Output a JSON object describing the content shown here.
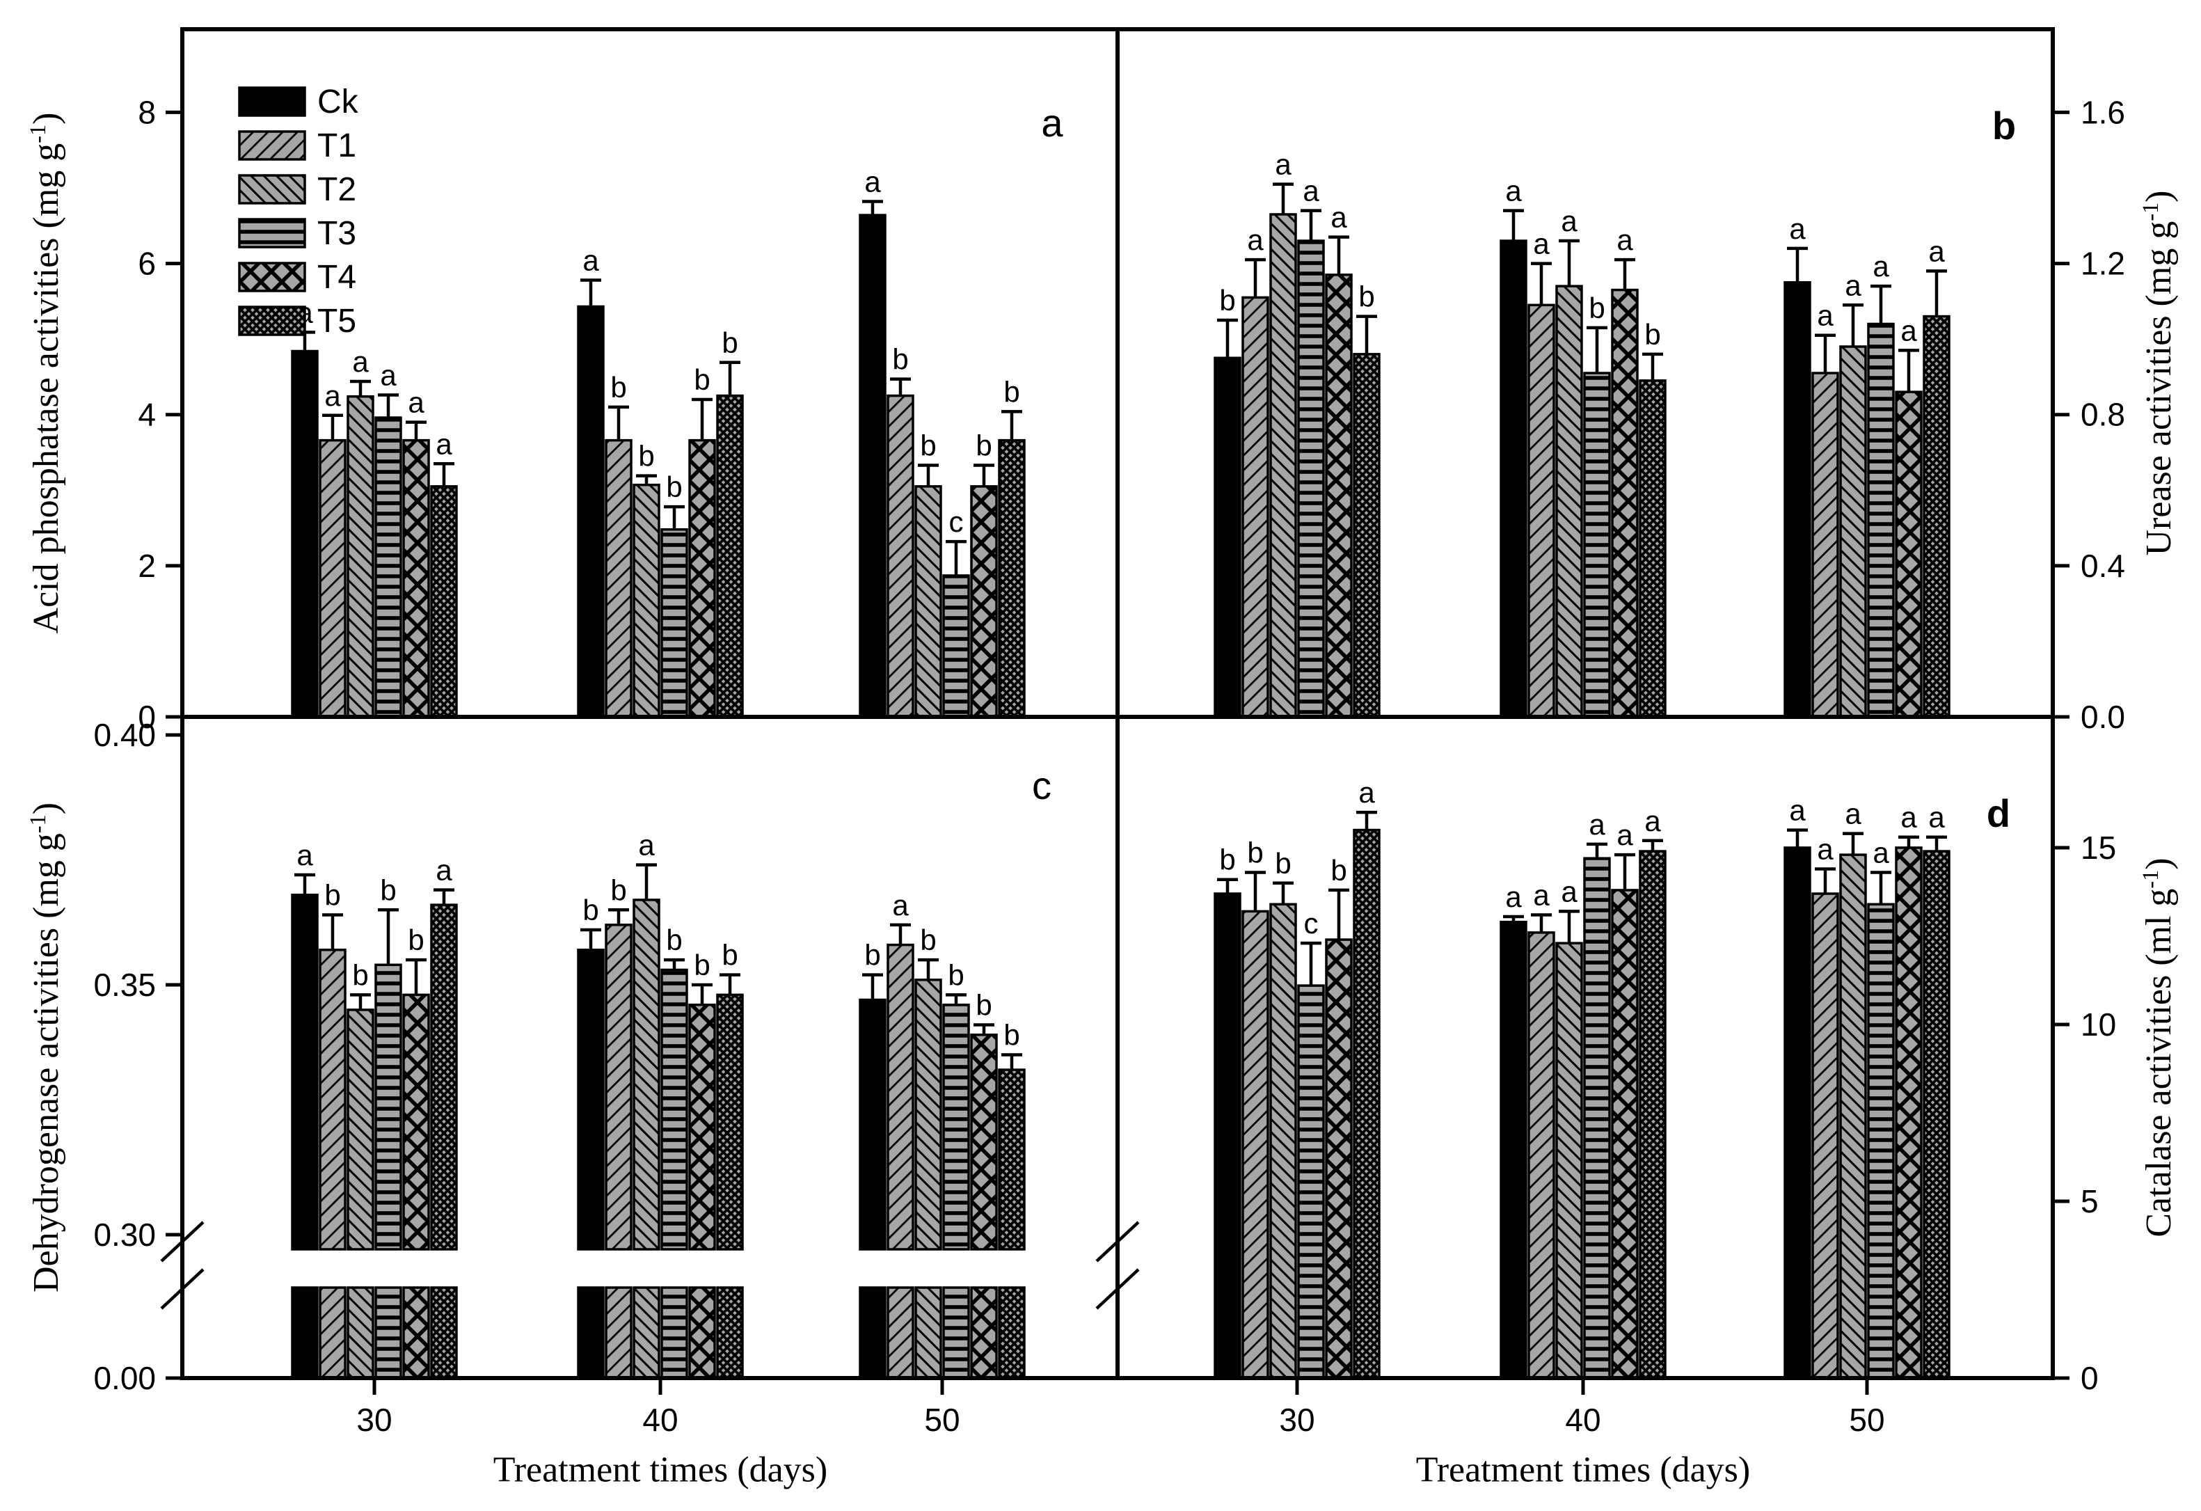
{
  "figure": {
    "background": "#ffffff",
    "ink": "#000000",
    "bar_gray": "#a6a6a6"
  },
  "legend": {
    "items": [
      {
        "label": "Ck",
        "pattern": "ck"
      },
      {
        "label": "T1",
        "pattern": "t1"
      },
      {
        "label": "T2",
        "pattern": "t2"
      },
      {
        "label": "T3",
        "pattern": "t3"
      },
      {
        "label": "T4",
        "pattern": "t4"
      },
      {
        "label": "T5",
        "pattern": "t5"
      }
    ]
  },
  "axes": {
    "a_y": {
      "pre": "Acid phosphatase activities (mg g",
      "sup": "-1",
      "post": ")"
    },
    "b_y": {
      "pre": "Urease activities  (mg g",
      "sup": "-1",
      "post": ")"
    },
    "c_y": {
      "pre": "Dehydrogenase activities (mg g",
      "sup": "-1",
      "post": ")"
    },
    "d_y": {
      "pre": "Catalase activities (ml g",
      "sup": "-1",
      "post": ")"
    },
    "x_left": {
      "title": "Treatment times (days)"
    },
    "x_right": {
      "title": "Treatment times (days)"
    }
  },
  "chart_data": [
    {
      "panel": "a",
      "type": "bar",
      "title": "Acid phosphatase activities",
      "ylabel": "Acid phosphatase activities (mg g-1)",
      "axis_side": "left",
      "ylim": [
        0,
        9.1
      ],
      "yticks": [
        {
          "v": 0,
          "label": "0"
        },
        {
          "v": 2,
          "label": "2"
        },
        {
          "v": 4,
          "label": "4"
        },
        {
          "v": 6,
          "label": "6"
        },
        {
          "v": 8,
          "label": "8"
        }
      ],
      "categories": [
        "30",
        "40",
        "50"
      ],
      "legend_here": true,
      "series": [
        {
          "name": "Ck",
          "values": [
            4.84,
            5.43,
            6.64
          ],
          "errors": [
            0.25,
            0.35,
            0.18
          ],
          "letters": [
            "a",
            "a",
            "a"
          ]
        },
        {
          "name": "T1",
          "values": [
            3.66,
            3.66,
            4.25
          ],
          "errors": [
            0.33,
            0.44,
            0.22
          ],
          "letters": [
            "a",
            "b",
            "b"
          ]
        },
        {
          "name": "T2",
          "values": [
            4.24,
            3.07,
            3.05
          ],
          "errors": [
            0.2,
            0.12,
            0.28
          ],
          "letters": [
            "a",
            "b",
            "b"
          ]
        },
        {
          "name": "T3",
          "values": [
            3.96,
            2.48,
            1.87
          ],
          "errors": [
            0.3,
            0.3,
            0.45
          ],
          "letters": [
            "a",
            "b",
            "c"
          ]
        },
        {
          "name": "T4",
          "values": [
            3.66,
            3.66,
            3.05
          ],
          "errors": [
            0.24,
            0.54,
            0.28
          ],
          "letters": [
            "a",
            "b",
            "b"
          ]
        },
        {
          "name": "T5",
          "values": [
            3.05,
            4.25,
            3.66
          ],
          "errors": [
            0.3,
            0.44,
            0.38
          ],
          "letters": [
            "a",
            "b",
            "b"
          ]
        }
      ]
    },
    {
      "panel": "b",
      "type": "bar",
      "title": "Urease activities",
      "ylabel": "Urease activities (mg g-1)",
      "axis_side": "right",
      "ylim": [
        0,
        1.82
      ],
      "yticks": [
        {
          "v": 0,
          "label": "0.0"
        },
        {
          "v": 0.4,
          "label": "0.4"
        },
        {
          "v": 0.8,
          "label": "0.8"
        },
        {
          "v": 1.2,
          "label": "1.2"
        },
        {
          "v": 1.6,
          "label": "1.6"
        }
      ],
      "categories": [
        "30",
        "40",
        "50"
      ],
      "series": [
        {
          "name": "Ck",
          "values": [
            0.95,
            1.26,
            1.15
          ],
          "errors": [
            0.1,
            0.08,
            0.09
          ],
          "letters": [
            "b",
            "a",
            "a"
          ]
        },
        {
          "name": "T1",
          "values": [
            1.11,
            1.09,
            0.91
          ],
          "errors": [
            0.1,
            0.11,
            0.1
          ],
          "letters": [
            "a",
            "a",
            "a"
          ]
        },
        {
          "name": "T2",
          "values": [
            1.33,
            1.14,
            0.98
          ],
          "errors": [
            0.08,
            0.12,
            0.11
          ],
          "letters": [
            "a",
            "a",
            "a"
          ]
        },
        {
          "name": "T3",
          "values": [
            1.26,
            0.91,
            1.04
          ],
          "errors": [
            0.08,
            0.12,
            0.1
          ],
          "letters": [
            "a",
            "b",
            "a"
          ]
        },
        {
          "name": "T4",
          "values": [
            1.17,
            1.13,
            0.86
          ],
          "errors": [
            0.1,
            0.08,
            0.11
          ],
          "letters": [
            "a",
            "a",
            "a"
          ]
        },
        {
          "name": "T5",
          "values": [
            0.96,
            0.89,
            1.06
          ],
          "errors": [
            0.1,
            0.07,
            0.12
          ],
          "letters": [
            "b",
            "b",
            "a"
          ]
        }
      ]
    },
    {
      "panel": "c",
      "type": "bar",
      "title": "Dehydrogenase activities",
      "ylabel": "Dehydrogenase activities (mg g-1)",
      "axis_side": "left",
      "broken_axis": true,
      "ylim": [
        0.3,
        0.405
      ],
      "yticks": [
        {
          "v": 0.4,
          "label": "0.40"
        },
        {
          "v": 0.35,
          "label": "0.35"
        },
        {
          "v": 0.3,
          "label": "0.30"
        },
        {
          "v": 0.0,
          "label": "0.00"
        }
      ],
      "categories": [
        "30",
        "40",
        "50"
      ],
      "series": [
        {
          "name": "Ck",
          "values": [
            0.368,
            0.357,
            0.347
          ],
          "errors": [
            0.004,
            0.004,
            0.005
          ],
          "letters": [
            "a",
            "b",
            "b"
          ]
        },
        {
          "name": "T1",
          "values": [
            0.357,
            0.362,
            0.358
          ],
          "errors": [
            0.007,
            0.003,
            0.004
          ],
          "letters": [
            "b",
            "b",
            "a"
          ]
        },
        {
          "name": "T2",
          "values": [
            0.345,
            0.367,
            0.351
          ],
          "errors": [
            0.003,
            0.007,
            0.004
          ],
          "letters": [
            "b",
            "a",
            "b"
          ]
        },
        {
          "name": "T3",
          "values": [
            0.354,
            0.353,
            0.346
          ],
          "errors": [
            0.011,
            0.002,
            0.002
          ],
          "letters": [
            "b",
            "b",
            "b"
          ]
        },
        {
          "name": "T4",
          "values": [
            0.348,
            0.346,
            0.34
          ],
          "errors": [
            0.007,
            0.004,
            0.002
          ],
          "letters": [
            "b",
            "b",
            "b"
          ]
        },
        {
          "name": "T5",
          "values": [
            0.366,
            0.348,
            0.333
          ],
          "errors": [
            0.003,
            0.004,
            0.003
          ],
          "letters": [
            "a",
            "b",
            "b"
          ]
        }
      ]
    },
    {
      "panel": "d",
      "type": "bar",
      "title": "Catalase activities",
      "ylabel": "Catalase activities (ml g-1)",
      "axis_side": "right",
      "ylim": [
        0,
        18.7
      ],
      "yticks": [
        {
          "v": 0,
          "label": "0"
        },
        {
          "v": 5,
          "label": "5"
        },
        {
          "v": 10,
          "label": "10"
        },
        {
          "v": 15,
          "label": "15"
        }
      ],
      "categories": [
        "30",
        "40",
        "50"
      ],
      "series": [
        {
          "name": "Ck",
          "values": [
            13.7,
            12.9,
            15.0
          ],
          "errors": [
            0.4,
            0.15,
            0.5
          ],
          "letters": [
            "b",
            "a",
            "a"
          ]
        },
        {
          "name": "T1",
          "values": [
            13.2,
            12.6,
            13.7
          ],
          "errors": [
            1.1,
            0.5,
            0.7
          ],
          "letters": [
            "b",
            "a",
            "a"
          ]
        },
        {
          "name": "T2",
          "values": [
            13.4,
            12.3,
            14.8
          ],
          "errors": [
            0.6,
            0.9,
            0.6
          ],
          "letters": [
            "b",
            "a",
            "a"
          ]
        },
        {
          "name": "T3",
          "values": [
            11.1,
            14.7,
            13.4
          ],
          "errors": [
            1.2,
            0.4,
            0.9
          ],
          "letters": [
            "c",
            "a",
            "a"
          ]
        },
        {
          "name": "T4",
          "values": [
            12.4,
            13.8,
            15.0
          ],
          "errors": [
            1.4,
            1.0,
            0.3
          ],
          "letters": [
            "b",
            "a",
            "a"
          ]
        },
        {
          "name": "T5",
          "values": [
            15.5,
            14.9,
            14.9
          ],
          "errors": [
            0.5,
            0.3,
            0.4
          ],
          "letters": [
            "a",
            "a",
            "a"
          ]
        }
      ]
    }
  ]
}
